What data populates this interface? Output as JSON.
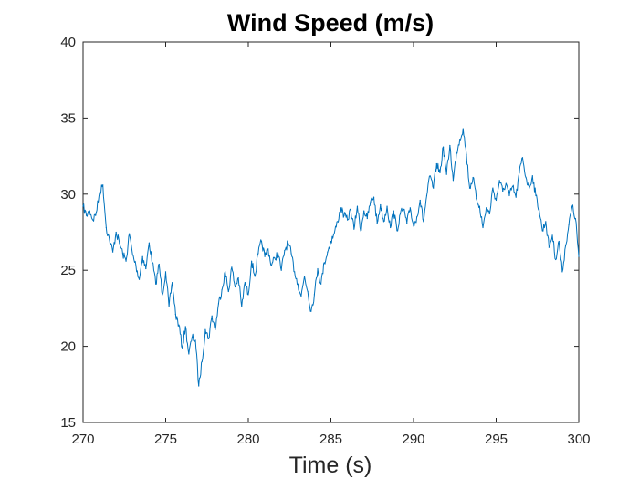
{
  "chart_data": {
    "type": "line",
    "title": "Wind Speed (m/s)",
    "xlabel": "Time (s)",
    "ylabel": "",
    "xlim": [
      270,
      300
    ],
    "ylim": [
      15,
      40
    ],
    "xticks": [
      "270",
      "275",
      "280",
      "285",
      "290",
      "295",
      "300"
    ],
    "yticks": [
      "15",
      "20",
      "25",
      "30",
      "35",
      "40"
    ],
    "grid": false,
    "colors": {
      "series": "#0072bd",
      "axes": "#262626",
      "background": "#ffffff"
    },
    "series": [
      {
        "x": [
          270.0,
          270.2,
          270.4,
          270.6,
          270.8,
          271.0,
          271.2,
          271.4,
          271.6,
          271.8,
          272.0,
          272.2,
          272.4,
          272.6,
          272.8,
          273.0,
          273.2,
          273.4,
          273.6,
          273.8,
          274.0,
          274.2,
          274.4,
          274.6,
          274.8,
          275.0,
          275.2,
          275.4,
          275.6,
          275.8,
          276.0,
          276.2,
          276.4,
          276.6,
          276.8,
          277.0,
          277.2,
          277.4,
          277.6,
          277.8,
          278.0,
          278.2,
          278.4,
          278.6,
          278.8,
          279.0,
          279.2,
          279.4,
          279.6,
          279.8,
          280.0,
          280.2,
          280.4,
          280.6,
          280.8,
          281.0,
          281.2,
          281.4,
          281.6,
          281.8,
          282.0,
          282.2,
          282.4,
          282.6,
          282.8,
          283.0,
          283.2,
          283.4,
          283.6,
          283.8,
          284.0,
          284.2,
          284.4,
          284.6,
          284.8,
          285.0,
          285.2,
          285.4,
          285.6,
          285.8,
          286.0,
          286.2,
          286.4,
          286.6,
          286.8,
          287.0,
          287.2,
          287.4,
          287.6,
          287.8,
          288.0,
          288.2,
          288.4,
          288.6,
          288.8,
          289.0,
          289.2,
          289.4,
          289.6,
          289.8,
          290.0,
          290.2,
          290.4,
          290.6,
          290.8,
          291.0,
          291.2,
          291.4,
          291.6,
          291.8,
          292.0,
          292.2,
          292.4,
          292.6,
          292.8,
          293.0,
          293.2,
          293.4,
          293.6,
          293.8,
          294.0,
          294.2,
          294.4,
          294.6,
          294.8,
          295.0,
          295.2,
          295.4,
          295.6,
          295.8,
          296.0,
          296.2,
          296.4,
          296.6,
          296.8,
          297.0,
          297.2,
          297.4,
          297.6,
          297.8,
          298.0,
          298.2,
          298.4,
          298.6,
          298.8,
          299.0,
          299.2,
          299.4,
          299.6,
          299.8,
          300.0
        ],
        "values": [
          29.2,
          28.6,
          28.9,
          28.3,
          28.8,
          30.1,
          30.6,
          27.8,
          27.0,
          26.2,
          27.5,
          26.8,
          26.1,
          25.6,
          27.4,
          26.0,
          25.3,
          24.4,
          25.9,
          25.1,
          26.8,
          25.5,
          24.1,
          25.4,
          23.4,
          24.9,
          22.6,
          24.2,
          22.1,
          21.4,
          19.9,
          21.3,
          19.5,
          20.6,
          20.4,
          17.4,
          19.0,
          21.1,
          20.5,
          22.0,
          21.1,
          22.8,
          23.7,
          24.9,
          23.6,
          25.2,
          23.9,
          24.5,
          22.6,
          24.2,
          23.4,
          25.6,
          24.6,
          26.1,
          26.9,
          25.9,
          26.4,
          25.3,
          25.8,
          26.1,
          25.0,
          26.3,
          26.8,
          26.1,
          24.9,
          24.1,
          23.3,
          24.6,
          23.6,
          22.3,
          23.4,
          25.1,
          24.1,
          25.5,
          26.2,
          26.9,
          27.4,
          28.2,
          29.1,
          28.6,
          28.3,
          29.0,
          27.7,
          29.2,
          27.6,
          28.9,
          28.4,
          29.5,
          29.8,
          28.1,
          29.3,
          28.2,
          29.2,
          27.8,
          28.9,
          27.6,
          28.7,
          29.0,
          28.1,
          29.1,
          27.9,
          28.5,
          29.6,
          28.2,
          29.9,
          31.2,
          30.4,
          32.0,
          31.4,
          33.1,
          31.3,
          33.2,
          30.9,
          32.7,
          33.6,
          34.3,
          32.6,
          30.4,
          31.1,
          29.7,
          29.2,
          27.8,
          29.1,
          28.7,
          30.4,
          29.6,
          30.9,
          30.2,
          30.7,
          29.9,
          30.5,
          29.8,
          31.4,
          32.4,
          31.1,
          30.4,
          31.2,
          29.9,
          29.0,
          27.6,
          28.2,
          26.5,
          27.3,
          25.7,
          26.9,
          24.9,
          26.6,
          28.0,
          29.2,
          28.4,
          25.9
        ]
      }
    ]
  }
}
